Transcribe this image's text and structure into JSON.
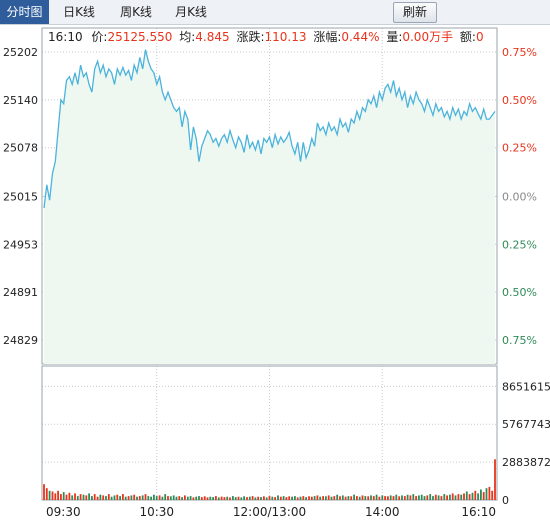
{
  "tabs": [
    {
      "label": "分时图",
      "active": true
    },
    {
      "label": "日K线",
      "active": false
    },
    {
      "label": "周K线",
      "active": false
    },
    {
      "label": "月K线",
      "active": false
    }
  ],
  "refresh_label": "刷新",
  "info": {
    "time": "16:10",
    "price_label": "价:",
    "price": "25125.550",
    "avg_label": "均:",
    "avg": "4.845",
    "change_label": "涨跌:",
    "change": "110.13",
    "pct_label": "涨幅:",
    "pct": "0.44%",
    "vol_label": "量:",
    "vol": "0.00万手",
    "amount_label": "额:",
    "amount": "0"
  },
  "colors": {
    "up": "#e8341c",
    "down": "#2e8b57",
    "line": "#4bb3dc",
    "fill": "#eef8f1",
    "grid": "#c6ccd4",
    "tab_active": "#2f5d9c"
  },
  "chart_data": [
    {
      "type": "line",
      "title": "",
      "y_ticks_left": [
        "25202",
        "25140",
        "25078",
        "25015",
        "24953",
        "24891",
        "24829"
      ],
      "y_ticks_right": [
        "0.75%",
        "0.50%",
        "0.25%",
        "0.00%",
        "0.25%",
        "0.50%",
        "0.75%"
      ],
      "x_ticks": [
        "09:30",
        "10:30",
        "12:00/13:00",
        "14:00",
        "16:10"
      ],
      "ylim": [
        24798,
        25233
      ],
      "prev_close": 25015,
      "series": [
        {
          "x": [
            0,
            1,
            2,
            3,
            4,
            5,
            6,
            7,
            8,
            9,
            10,
            11,
            12,
            13,
            14,
            15,
            16,
            17,
            18,
            19,
            20,
            21,
            22,
            23,
            24,
            25,
            26,
            27,
            28,
            29,
            30,
            31,
            32,
            33,
            34,
            35,
            36,
            37,
            38,
            39,
            40,
            41,
            42,
            43,
            44,
            45,
            46,
            47,
            48,
            49,
            50,
            51,
            52,
            53,
            54,
            55,
            56,
            57,
            58,
            59,
            60,
            61,
            62,
            63,
            64,
            65,
            66,
            67,
            68,
            69,
            70,
            71,
            72,
            73,
            74,
            75,
            76,
            77,
            78,
            79,
            80,
            81,
            82,
            83,
            84,
            85,
            86,
            87,
            88,
            89,
            90,
            91,
            92,
            93,
            94,
            95,
            96,
            97,
            98,
            99,
            100,
            101,
            102,
            103,
            104,
            105,
            106,
            107,
            108,
            109,
            110,
            111,
            112,
            113,
            114,
            115,
            116,
            117,
            118,
            119,
            120,
            121,
            122,
            123,
            124,
            125,
            126,
            127,
            128,
            129,
            130,
            131,
            132,
            133,
            134,
            135,
            136,
            137,
            138,
            139,
            140,
            141,
            142,
            143,
            144,
            145,
            146,
            147,
            148,
            149,
            150,
            151,
            152,
            153,
            154,
            155,
            156,
            157,
            158,
            159,
            160
          ],
          "values": [
            25000,
            25030,
            25010,
            25045,
            25060,
            25100,
            25140,
            25135,
            25165,
            25170,
            25160,
            25175,
            25160,
            25185,
            25170,
            25175,
            25160,
            25150,
            25180,
            25190,
            25175,
            25185,
            25170,
            25180,
            25175,
            25160,
            25180,
            25172,
            25182,
            25172,
            25178,
            25165,
            25185,
            25175,
            25195,
            25180,
            25205,
            25190,
            25180,
            25175,
            25160,
            25170,
            25150,
            25140,
            25150,
            25140,
            25130,
            25125,
            25130,
            25105,
            25125,
            25115,
            25075,
            25105,
            25090,
            25060,
            25080,
            25090,
            25100,
            25095,
            25085,
            25090,
            25080,
            25090,
            25095,
            25085,
            25100,
            25088,
            25078,
            25092,
            25085,
            25072,
            25095,
            25078,
            25085,
            25075,
            25088,
            25070,
            25090,
            25085,
            25092,
            25078,
            25095,
            25083,
            25092,
            25085,
            25090,
            25098,
            25080,
            25070,
            25085,
            25060,
            25085,
            25065,
            25075,
            25090,
            25080,
            25110,
            25100,
            25105,
            25095,
            25110,
            25100,
            25105,
            25095,
            25115,
            25105,
            25110,
            25098,
            25115,
            25110,
            25125,
            25115,
            25130,
            25125,
            25140,
            25135,
            25145,
            25130,
            25150,
            25140,
            25155,
            25160,
            25150,
            25165,
            25145,
            25155,
            25140,
            25150,
            25130,
            25145,
            25135,
            25150,
            25140,
            25135,
            25125,
            25140,
            25130,
            25120,
            25135,
            25125,
            25130,
            25118,
            25125,
            25115,
            25130,
            25120,
            25128,
            25115,
            25125,
            25120,
            25135,
            25125,
            25130,
            25122,
            25115,
            25128,
            25115,
            25115,
            25120,
            25125
          ]
        }
      ]
    },
    {
      "type": "bar",
      "title": "",
      "y_ticks_left": [
        "8651615",
        "5767743",
        "2883872",
        "0"
      ],
      "ylim": [
        0,
        10200000
      ],
      "series": [
        {
          "values": [
            1200000,
            900000,
            700000,
            650000,
            500000,
            700000,
            450000,
            600000,
            400000,
            550000,
            350000,
            500000,
            300000,
            450000,
            400000,
            350000,
            500000,
            300000,
            450000,
            250000,
            400000,
            350000,
            300000,
            450000,
            250000,
            350000,
            400000,
            300000,
            450000,
            250000,
            300000,
            350000,
            400000,
            250000,
            300000,
            350000,
            450000,
            300000,
            250000,
            400000,
            300000,
            350000,
            250000,
            450000,
            300000,
            280000,
            350000,
            250000,
            300000,
            220000,
            350000,
            250000,
            300000,
            200000,
            250000,
            300000,
            220000,
            280000,
            200000,
            250000,
            220000,
            300000,
            200000,
            260000,
            220000,
            250000,
            200000,
            300000,
            220000,
            250000,
            200000,
            280000,
            220000,
            250000,
            300000,
            200000,
            250000,
            220000,
            280000,
            200000,
            300000,
            250000,
            220000,
            350000,
            250000,
            300000,
            220000,
            280000,
            250000,
            300000,
            200000,
            250000,
            300000,
            220000,
            280000,
            250000,
            300000,
            350000,
            250000,
            300000,
            280000,
            350000,
            250000,
            300000,
            400000,
            280000,
            350000,
            250000,
            300000,
            280000,
            400000,
            300000,
            250000,
            350000,
            300000,
            280000,
            350000,
            300000,
            400000,
            250000,
            350000,
            300000,
            280000,
            350000,
            300000,
            400000,
            280000,
            350000,
            300000,
            400000,
            350000,
            450000,
            300000,
            350000,
            400000,
            300000,
            350000,
            450000,
            300000,
            400000,
            350000,
            300000,
            450000,
            350000,
            400000,
            500000,
            350000,
            450000,
            400000,
            500000,
            650000,
            450000,
            550000,
            700000,
            500000,
            800000,
            600000,
            900000,
            1000000,
            700000,
            3100000
          ]
        }
      ]
    }
  ]
}
